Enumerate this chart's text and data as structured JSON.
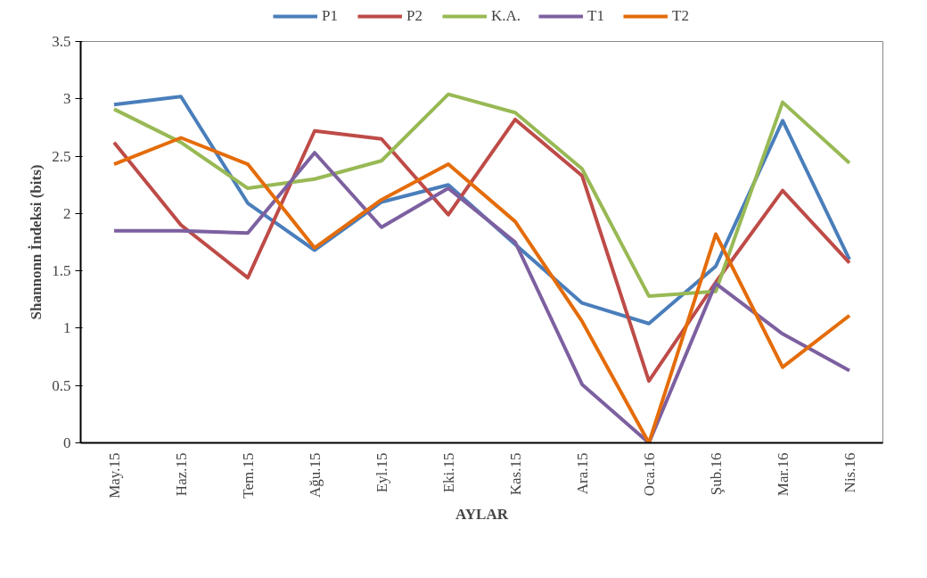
{
  "chart_data": {
    "type": "line",
    "xlabel": "AYLAR",
    "ylabel": "Shannonn İndeksi (bits)",
    "categories": [
      "May.15",
      "Haz.15",
      "Tem.15",
      "Ağu.15",
      "Eyl.15",
      "Eki.15",
      "Kas.15",
      "Ara.15",
      "Oca.16",
      "Şub.16",
      "Mar.16",
      "Nis.16"
    ],
    "series": [
      {
        "name": "P1",
        "color": "#4a7ebb",
        "values": [
          2.95,
          3.02,
          2.09,
          1.68,
          2.1,
          2.25,
          1.73,
          1.22,
          1.04,
          1.54,
          2.81,
          1.6
        ]
      },
      {
        "name": "P2",
        "color": "#be4b48",
        "values": [
          2.62,
          1.9,
          1.44,
          2.72,
          2.65,
          1.99,
          2.82,
          2.33,
          0.54,
          1.4,
          2.2,
          1.57
        ]
      },
      {
        "name": "K.A.",
        "color": "#98b954",
        "values": [
          2.91,
          2.62,
          2.22,
          2.3,
          2.46,
          3.04,
          2.88,
          2.39,
          1.28,
          1.32,
          2.97,
          2.44
        ]
      },
      {
        "name": "T1",
        "color": "#7d60a0",
        "values": [
          1.85,
          1.85,
          1.83,
          2.53,
          1.88,
          2.22,
          1.75,
          0.51,
          0.0,
          1.39,
          0.95,
          0.63
        ]
      },
      {
        "name": "T2",
        "color": "#e46c0a",
        "values": [
          2.43,
          2.66,
          2.43,
          1.7,
          2.12,
          2.43,
          1.93,
          1.06,
          0.0,
          1.82,
          0.66,
          1.11
        ]
      }
    ],
    "ylim": [
      0,
      3.5
    ],
    "yticks": [
      0,
      0.5,
      1,
      1.5,
      2,
      2.5,
      3,
      3.5
    ],
    "grid": false,
    "legend": "top",
    "marker": "none",
    "line_style": "solid"
  }
}
